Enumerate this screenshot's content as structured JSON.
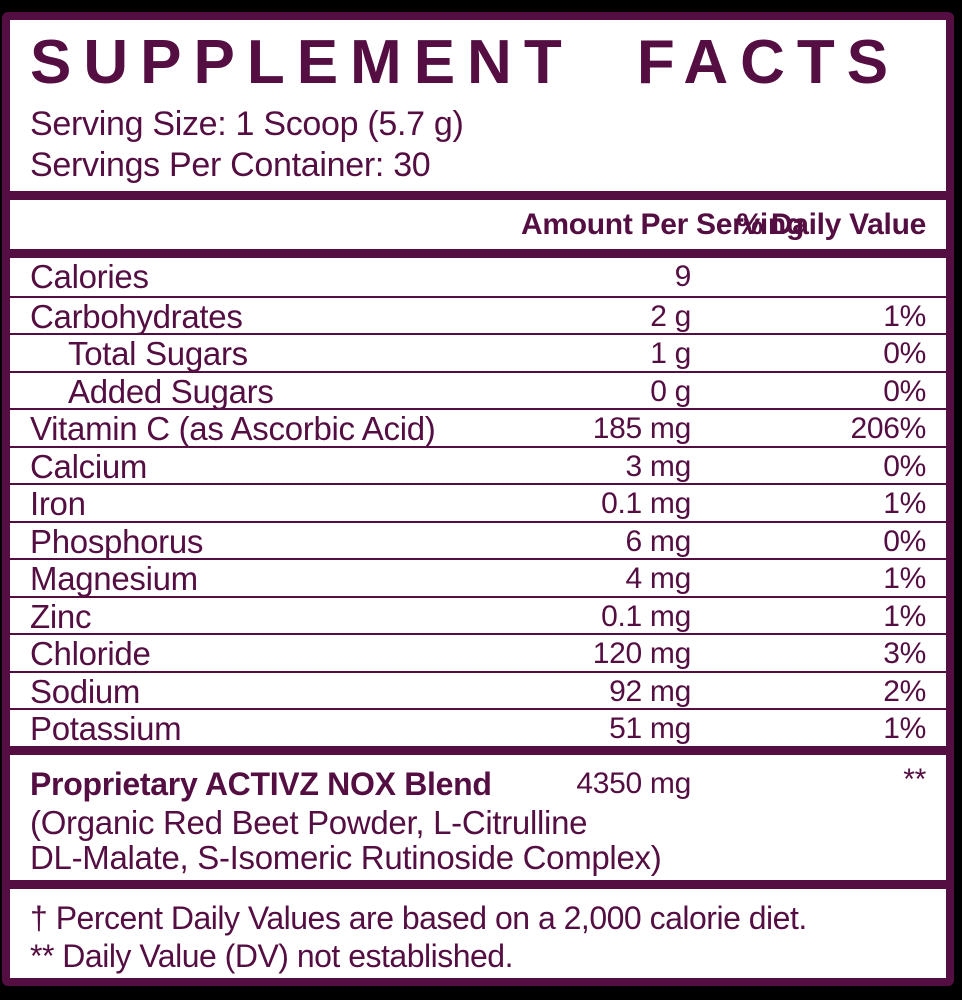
{
  "colors": {
    "maroon": "#540E42",
    "panel_bg": "#FFFFFF",
    "page_bg": "#000000"
  },
  "title": "SUPPLEMENT FACTS",
  "serving": {
    "size": "Serving Size: 1 Scoop (5.7 g)",
    "per_container": "Servings Per Container: 30"
  },
  "table": {
    "headers": {
      "amount": "Amount Per Serving",
      "dv": "% Daily Value"
    },
    "rows": [
      {
        "name": "Calories",
        "amount": "9",
        "dv": "",
        "indent": false
      },
      {
        "name": "Carbohydrates",
        "amount": "2 g",
        "dv": "1%",
        "indent": false
      },
      {
        "name": "Total Sugars",
        "amount": "1 g",
        "dv": "0%",
        "indent": true
      },
      {
        "name": "Added Sugars",
        "amount": "0 g",
        "dv": "0%",
        "indent": true
      },
      {
        "name": "Vitamin C (as Ascorbic Acid)",
        "amount": "185 mg",
        "dv": "206%",
        "indent": false
      },
      {
        "name": "Calcium",
        "amount": "3 mg",
        "dv": "0%",
        "indent": false
      },
      {
        "name": "Iron",
        "amount": "0.1 mg",
        "dv": "1%",
        "indent": false
      },
      {
        "name": "Phosphorus",
        "amount": "6 mg",
        "dv": "0%",
        "indent": false
      },
      {
        "name": "Magnesium",
        "amount": "4 mg",
        "dv": "1%",
        "indent": false
      },
      {
        "name": "Zinc",
        "amount": "0.1 mg",
        "dv": "1%",
        "indent": false
      },
      {
        "name": "Chloride",
        "amount": "120 mg",
        "dv": "3%",
        "indent": false
      },
      {
        "name": "Sodium",
        "amount": "92 mg",
        "dv": "2%",
        "indent": false
      },
      {
        "name": "Potassium",
        "amount": "51 mg",
        "dv": "1%",
        "indent": false
      }
    ]
  },
  "blend": {
    "name": "Proprietary ACTIVZ NOX Blend",
    "amount": "4350 mg",
    "dv": "**",
    "description_lines": [
      "(Organic Red Beet Powder, L-Citrulline",
      "DL-Malate, S-Isomeric Rutinoside Complex)"
    ]
  },
  "footnotes": [
    "† Percent Daily Values are based on a 2,000 calorie diet.",
    "** Daily Value (DV) not established."
  ]
}
